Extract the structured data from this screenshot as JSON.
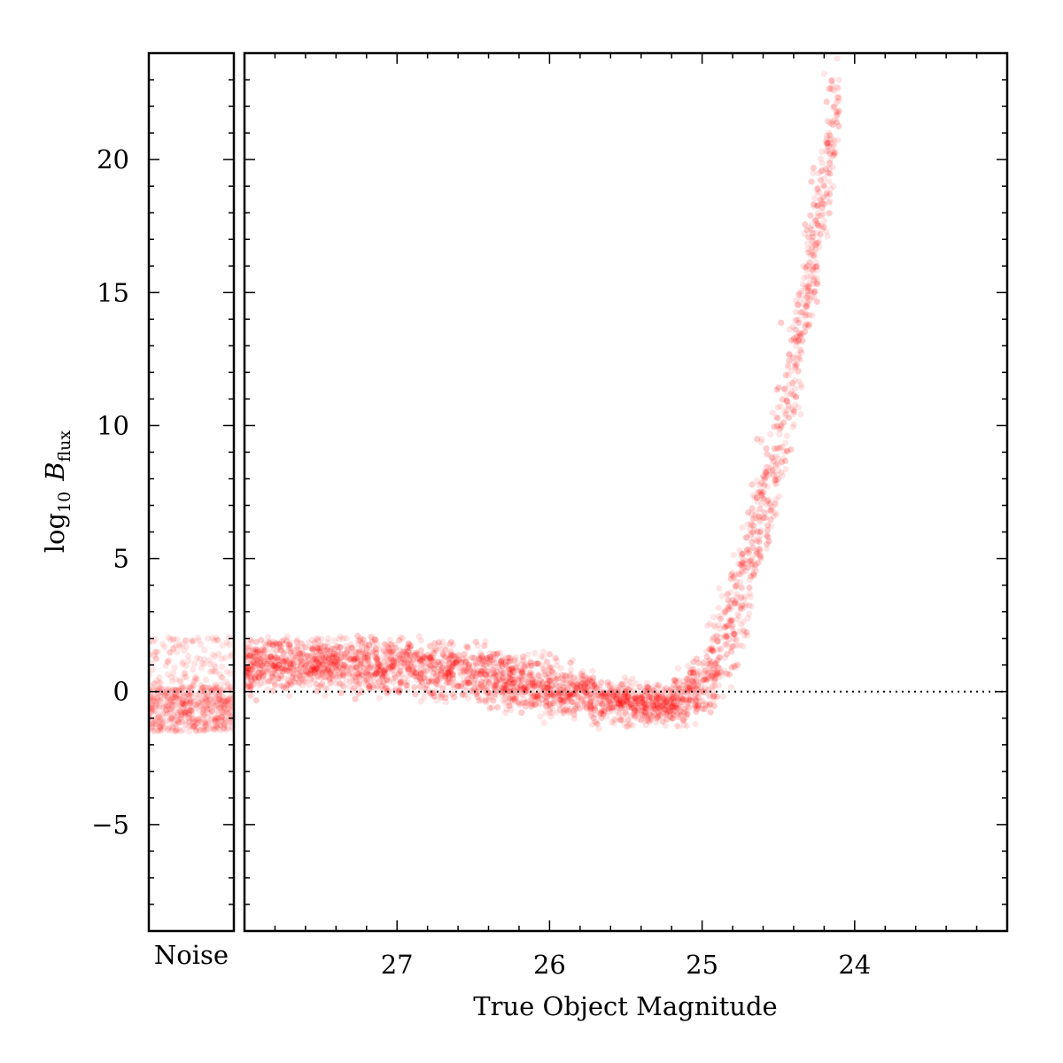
{
  "chart_data": {
    "type": "scatter",
    "point_color": "#ff0000",
    "point_opacity": 0.1,
    "panels": [
      {
        "id": "noise",
        "xlabel": "Noise",
        "x_ticks": [],
        "y_is_shared": true,
        "cloud_bands": [
          {
            "y_range": [
              -1.5,
              0.2
            ],
            "density": "high"
          },
          {
            "y_range": [
              0.2,
              2.1
            ],
            "density": "low"
          }
        ]
      },
      {
        "id": "magnitude",
        "xlabel": "True Object Magnitude",
        "xlim": [
          28.0,
          23.0
        ],
        "x_inverted": true,
        "x_ticks": [
          27,
          26,
          25,
          24
        ],
        "x_tick_labels": [
          "27",
          "26",
          "25",
          "24"
        ],
        "trend": [
          {
            "x": 28.0,
            "y_center": 1.0,
            "y_spread": 1.1
          },
          {
            "x": 27.5,
            "y_center": 1.1,
            "y_spread": 1.1
          },
          {
            "x": 27.0,
            "y_center": 1.0,
            "y_spread": 1.1
          },
          {
            "x": 26.5,
            "y_center": 0.7,
            "y_spread": 1.2
          },
          {
            "x": 26.0,
            "y_center": 0.1,
            "y_spread": 1.1
          },
          {
            "x": 25.5,
            "y_center": -0.4,
            "y_spread": 0.9
          },
          {
            "x": 25.2,
            "y_center": -0.5,
            "y_spread": 0.8
          },
          {
            "x": 25.0,
            "y_center": 0.3,
            "y_spread": 1.6
          },
          {
            "x": 24.8,
            "y_center": 2.5,
            "y_spread": 2.5
          },
          {
            "x": 24.6,
            "y_center": 7.0,
            "y_spread": 2.8
          },
          {
            "x": 24.4,
            "y_center": 12.0,
            "y_spread": 3.0
          },
          {
            "x": 24.2,
            "y_center": 19.0,
            "y_spread": 3.2
          },
          {
            "x": 24.1,
            "y_center": 23.0,
            "y_spread": 2.5
          }
        ]
      }
    ],
    "ylabel_base": "log",
    "ylabel_base_subscript": "10",
    "ylabel_symbol": "B",
    "ylabel_subscript": "flux",
    "ylim": [
      -9,
      24
    ],
    "y_ticks": [
      -5,
      0,
      5,
      10,
      15,
      20
    ],
    "y_tick_labels": [
      "−5",
      "0",
      "5",
      "10",
      "15",
      "20"
    ],
    "reference_line": {
      "y": 0,
      "style": "dotted"
    },
    "grid": false
  }
}
